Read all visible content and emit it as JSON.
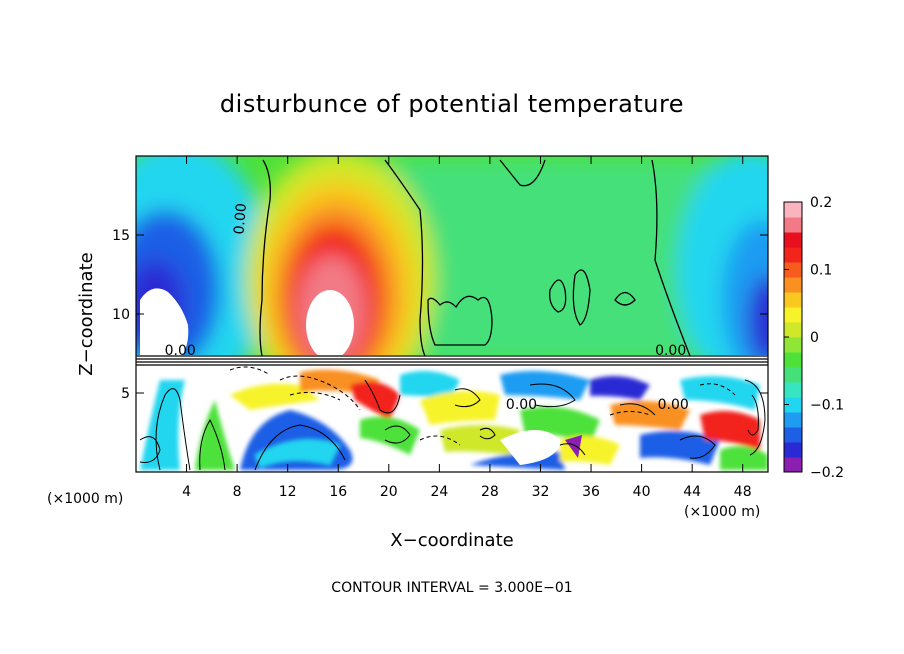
{
  "chart_data": {
    "type": "heatmap",
    "title": "disturbunce of potential temperature",
    "xlabel": "X−coordinate",
    "ylabel": "Z−coordinate",
    "x_unit_left": "(×1000 m)",
    "x_unit_right": "(×1000 m)",
    "note": "CONTOUR INTERVAL = 3.000E−01",
    "xlim": [
      0,
      50
    ],
    "ylim": [
      0,
      20
    ],
    "x_ticks": [
      {
        "value": 4,
        "label": "4"
      },
      {
        "value": 8,
        "label": "8"
      },
      {
        "value": 12,
        "label": "12"
      },
      {
        "value": 16,
        "label": "16"
      },
      {
        "value": 20,
        "label": "20"
      },
      {
        "value": 24,
        "label": "24"
      },
      {
        "value": 28,
        "label": "28"
      },
      {
        "value": 32,
        "label": "32"
      },
      {
        "value": 36,
        "label": "36"
      },
      {
        "value": 40,
        "label": "40"
      },
      {
        "value": 44,
        "label": "44"
      },
      {
        "value": 48,
        "label": "48"
      }
    ],
    "y_ticks": [
      {
        "value": 5,
        "label": "5"
      },
      {
        "value": 10,
        "label": "10"
      },
      {
        "value": 15,
        "label": "15"
      }
    ],
    "colorbar": {
      "range": [
        -0.2,
        0.2
      ],
      "ticks": [
        {
          "value": 0.2,
          "label": "0.2"
        },
        {
          "value": 0.1,
          "label": "0.1"
        },
        {
          "value": 0,
          "label": "0"
        },
        {
          "value": -0.1,
          "label": "−0.1"
        },
        {
          "value": -0.2,
          "label": "−0.2"
        }
      ],
      "colors": [
        "#8a1fb0",
        "#2a2ad4",
        "#1e5fe6",
        "#1f9cf2",
        "#20d6f0",
        "#37e6c0",
        "#44e07a",
        "#4ee13a",
        "#8fe636",
        "#cfe82a",
        "#f7f32a",
        "#f9c91f",
        "#f99020",
        "#f75c1e",
        "#f2241c",
        "#e8101e",
        "#f27a86",
        "#f9b4bf"
      ]
    },
    "contour_labels": [
      {
        "x": 8.6,
        "z": 16.0,
        "text": "0.00",
        "rotate": -85
      },
      {
        "x": 3.5,
        "z": 7.4,
        "text": "0.00",
        "rotate": 0
      },
      {
        "x": 30.5,
        "z": 4.0,
        "text": "0.00",
        "rotate": 0
      },
      {
        "x": 42.3,
        "z": 7.4,
        "text": "0.00",
        "rotate": 0
      },
      {
        "x": 42.5,
        "z": 4.0,
        "text": "0.00",
        "rotate": 0
      }
    ]
  }
}
